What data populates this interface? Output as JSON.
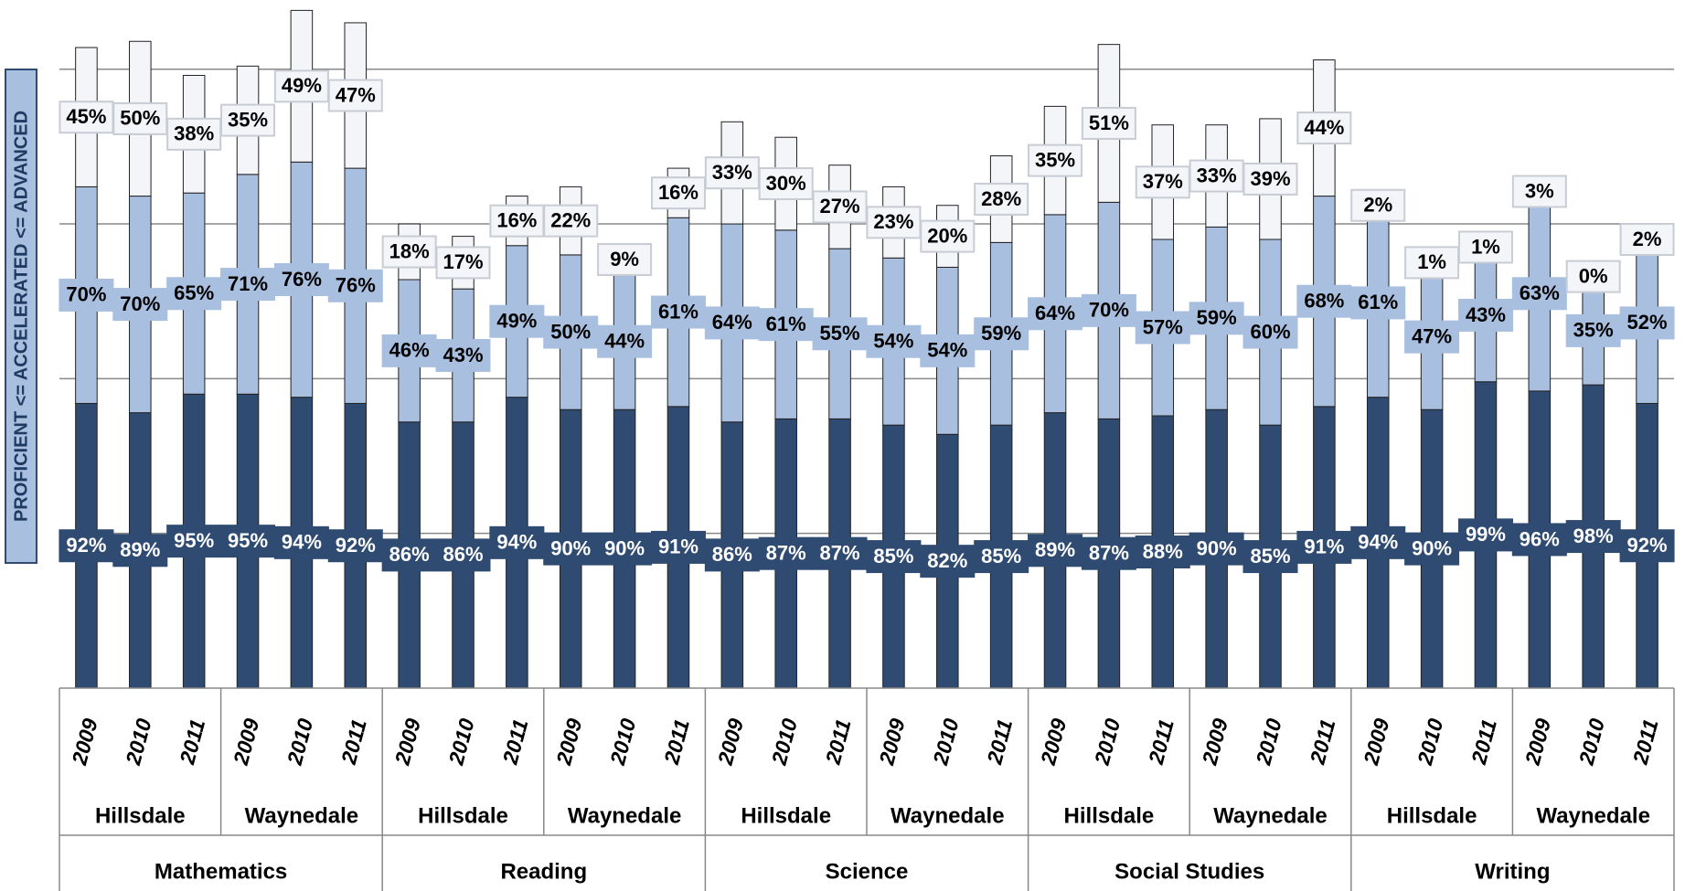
{
  "chart_data": {
    "type": "stacked_bar",
    "axis_title": "PROFICIENT <= ACCELERATED <= ADVANCED",
    "subjects": [
      "Mathematics",
      "Reading",
      "Science",
      "Social Studies",
      "Writing"
    ],
    "schools": [
      "Hillsdale",
      "Waynedale"
    ],
    "years": [
      "2009",
      "2010",
      "2011"
    ],
    "ylim": [
      0,
      220
    ],
    "gridlines": [
      50,
      100,
      150,
      200
    ],
    "series": [
      {
        "color": "#2f4b72",
        "label_color": "#ffffff",
        "values": [
          92,
          89,
          95,
          95,
          94,
          92,
          86,
          86,
          94,
          90,
          90,
          91,
          86,
          87,
          87,
          85,
          82,
          85,
          89,
          87,
          88,
          90,
          85,
          91,
          94,
          90,
          99,
          96,
          98,
          92
        ],
        "value_labels": [
          "92%",
          "89%",
          "95%",
          "95%",
          "94%",
          "92%",
          "86%",
          "86%",
          "94%",
          "90%",
          "90%",
          "91%",
          "86%",
          "87%",
          "87%",
          "85%",
          "82%",
          "85%",
          "89%",
          "87%",
          "88%",
          "90%",
          "85%",
          "91%",
          "94%",
          "90%",
          "99%",
          "96%",
          "98%",
          "92%"
        ]
      },
      {
        "color": "#a8bfe0",
        "label_color": "#000000",
        "values": [
          70,
          70,
          65,
          71,
          76,
          76,
          46,
          43,
          49,
          50,
          44,
          61,
          64,
          61,
          55,
          54,
          54,
          59,
          64,
          70,
          57,
          59,
          60,
          68,
          61,
          47,
          43,
          63,
          35,
          52
        ],
        "value_labels": [
          "70%",
          "70%",
          "65%",
          "71%",
          "76%",
          "76%",
          "46%",
          "43%",
          "49%",
          "50%",
          "44%",
          "61%",
          "64%",
          "61%",
          "55%",
          "54%",
          "54%",
          "59%",
          "64%",
          "70%",
          "57%",
          "59%",
          "60%",
          "68%",
          "61%",
          "47%",
          "43%",
          "63%",
          "35%",
          "52%"
        ]
      },
      {
        "color": "#f3f5f9",
        "label_color": "#000000",
        "values": [
          45,
          50,
          38,
          35,
          49,
          47,
          18,
          17,
          16,
          22,
          9,
          16,
          33,
          30,
          27,
          23,
          20,
          28,
          35,
          51,
          37,
          33,
          39,
          44,
          2,
          1,
          1,
          3,
          0,
          2
        ],
        "value_labels": [
          "45%",
          "50%",
          "38%",
          "35%",
          "49%",
          "47%",
          "18%",
          "17%",
          "16%",
          "22%",
          "9%",
          "16%",
          "33%",
          "30%",
          "27%",
          "23%",
          "20%",
          "28%",
          "35%",
          "51%",
          "37%",
          "33%",
          "39%",
          "44%",
          "2%",
          "1%",
          "1%",
          "3%",
          "0%",
          "2%"
        ]
      }
    ]
  }
}
